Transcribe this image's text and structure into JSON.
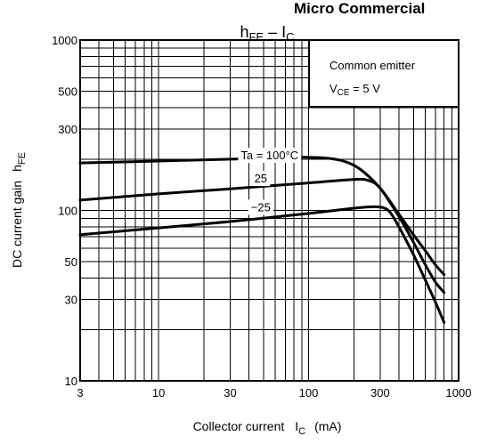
{
  "header_text": "Micro Commercial",
  "chart_data": {
    "type": "line",
    "title": "h_FE – I_C",
    "title_parts": {
      "main": "h",
      "main_sub": "FE",
      "sep": " – ",
      "var": "I",
      "var_sub": "C"
    },
    "xlabel": "Collector current",
    "xlabel_parts": {
      "text": "Collector current",
      "sym": "I",
      "sym_sub": "C",
      "unit": "(mA)"
    },
    "ylabel": "DC current gain",
    "ylabel_parts": {
      "text": "DC current gain",
      "sym": "h",
      "sym_sub": "FE"
    },
    "x_scale": "log",
    "y_scale": "log",
    "xlim": [
      3,
      1000
    ],
    "ylim": [
      10,
      1000
    ],
    "x_ticks": [
      3,
      10,
      30,
      100,
      300,
      1000
    ],
    "x_tick_labels": [
      "3",
      "10",
      "30",
      "100",
      "300",
      "1000"
    ],
    "y_ticks": [
      10,
      30,
      50,
      100,
      300,
      500,
      1000
    ],
    "y_tick_labels": [
      "10",
      "30",
      "50",
      "100",
      "300",
      "500",
      "1000"
    ],
    "grid": true,
    "legend_box": {
      "placement": "top-right",
      "line1": "Common emitter",
      "line2_sym": "V",
      "line2_sub": "CE",
      "line2_val": " = 5 V"
    },
    "series": [
      {
        "name": "Ta = 100°C",
        "x": [
          3,
          10,
          30,
          60,
          100,
          130,
          170,
          220,
          300,
          400,
          500,
          600,
          700,
          800
        ],
        "y": [
          190,
          195,
          200,
          205,
          205,
          203,
          195,
          175,
          135,
          95,
          72,
          58,
          48,
          42
        ]
      },
      {
        "name": "25",
        "x": [
          3,
          10,
          30,
          100,
          200,
          250,
          300,
          400,
          500,
          600,
          700,
          800
        ],
        "y": [
          115,
          125,
          134,
          145,
          152,
          150,
          135,
          92,
          65,
          48,
          38,
          33
        ]
      },
      {
        "name": "−25",
        "x": [
          3,
          10,
          30,
          100,
          200,
          280,
          340,
          400,
          500,
          600,
          700,
          800
        ],
        "y": [
          72,
          79,
          86,
          96,
          103,
          105,
          100,
          80,
          55,
          39,
          29,
          22
        ]
      }
    ],
    "curve_labels": [
      {
        "series": 0,
        "text": "Ta = 100°C",
        "at_x": 55,
        "at_y": 212
      },
      {
        "series": 1,
        "text": "25",
        "at_x": 48,
        "at_y": 155
      },
      {
        "series": 2,
        "text": "−25",
        "at_x": 48,
        "at_y": 105
      }
    ]
  }
}
